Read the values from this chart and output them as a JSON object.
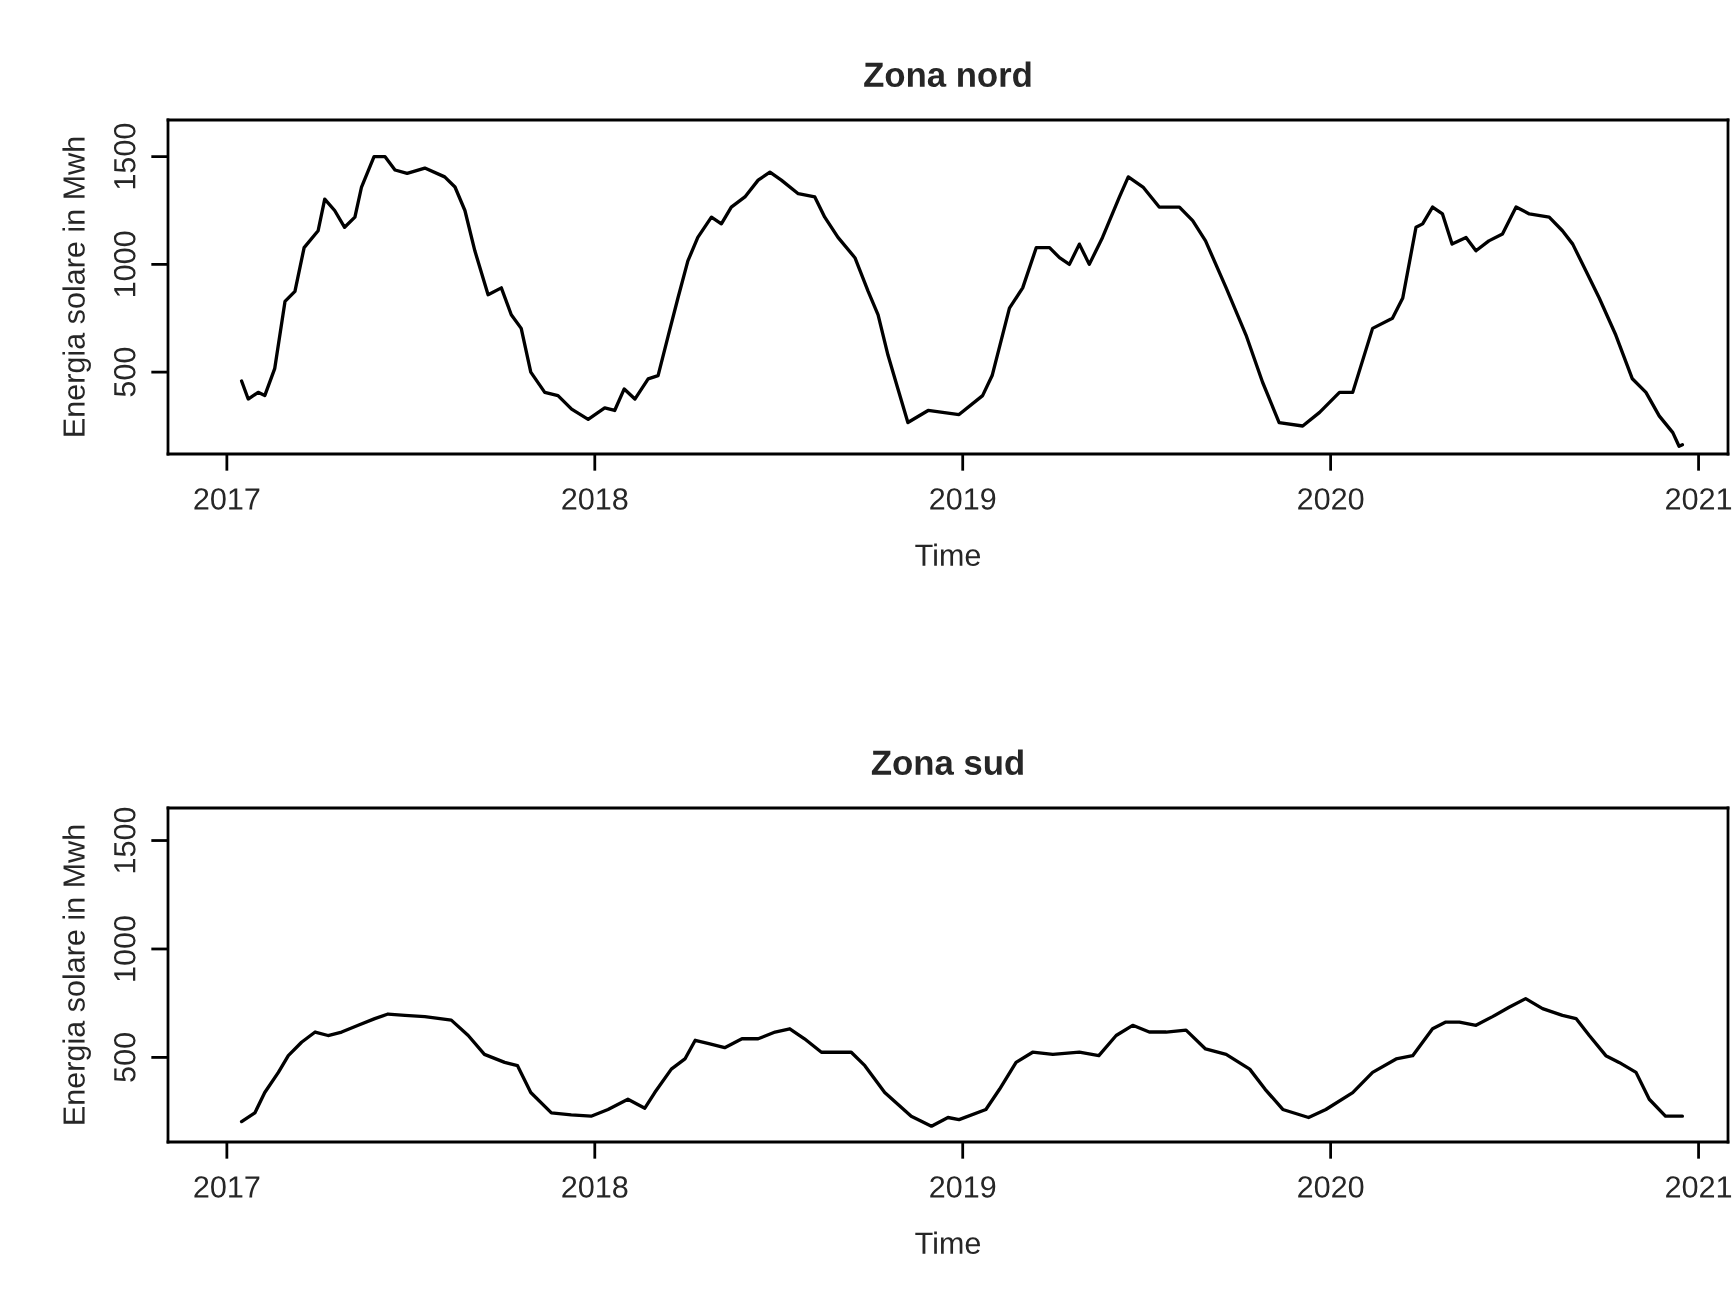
{
  "chart_data": [
    {
      "type": "line",
      "title": "Zona nord",
      "xlabel": "Time",
      "ylabel": "Energia solare in Mwh",
      "xlim": [
        2016.84,
        2021.08
      ],
      "xticks": [
        2017,
        2018,
        2019,
        2020,
        2021
      ],
      "ylim": [
        120,
        1670
      ],
      "yticks": [
        500,
        1000,
        1500
      ],
      "grid": false,
      "legend": false,
      "series": [
        {
          "color": "#000000",
          "x": [
            2017.04,
            2017.058,
            2017.085,
            2017.103,
            2017.13,
            2017.158,
            2017.185,
            2017.21,
            2017.248,
            2017.266,
            2017.293,
            2017.32,
            2017.348,
            2017.366,
            2017.4,
            2017.43,
            2017.457,
            2017.49,
            2017.538,
            2017.592,
            2017.62,
            2017.647,
            2017.674,
            2017.71,
            2017.746,
            2017.773,
            2017.8,
            2017.826,
            2017.864,
            2017.9,
            2017.937,
            2017.982,
            2018.027,
            2018.054,
            2018.08,
            2018.109,
            2018.145,
            2018.172,
            2018.2,
            2018.226,
            2018.253,
            2018.28,
            2018.317,
            2018.344,
            2018.371,
            2018.408,
            2018.444,
            2018.476,
            2018.507,
            2018.553,
            2018.598,
            2018.625,
            2018.661,
            2018.707,
            2018.743,
            2018.77,
            2018.797,
            2018.824,
            2018.851,
            2018.906,
            2018.99,
            2019.054,
            2019.08,
            2019.127,
            2019.163,
            2019.2,
            2019.236,
            2019.263,
            2019.29,
            2019.317,
            2019.344,
            2019.38,
            2019.426,
            2019.45,
            2019.49,
            2019.534,
            2019.589,
            2019.625,
            2019.66,
            2019.716,
            2019.77,
            2019.815,
            2019.86,
            2019.924,
            2019.97,
            2020.024,
            2020.06,
            2020.114,
            2020.168,
            2020.196,
            2020.232,
            2020.25,
            2020.277,
            2020.304,
            2020.33,
            2020.368,
            2020.395,
            2020.43,
            2020.467,
            2020.504,
            2020.54,
            2020.594,
            2020.63,
            2020.658,
            2020.694,
            2020.73,
            2020.775,
            2020.82,
            2020.857,
            2020.893,
            2020.93,
            2020.947,
            2020.956
          ],
          "values": [
            459,
            375,
            406,
            391,
            516,
            828,
            875,
            1078,
            1156,
            1303,
            1250,
            1172,
            1219,
            1359,
            1500,
            1500,
            1438,
            1422,
            1447,
            1406,
            1359,
            1250,
            1063,
            859,
            891,
            766,
            703,
            500,
            406,
            391,
            328,
            281,
            334,
            322,
            422,
            375,
            469,
            484,
            672,
            844,
            1016,
            1125,
            1219,
            1188,
            1266,
            1313,
            1391,
            1428,
            1391,
            1328,
            1313,
            1219,
            1125,
            1031,
            875,
            766,
            578,
            422,
            266,
            322,
            303,
            391,
            484,
            797,
            891,
            1078,
            1078,
            1031,
            1000,
            1094,
            1000,
            1125,
            1313,
            1406,
            1359,
            1266,
            1266,
            1203,
            1109,
            891,
            672,
            453,
            266,
            250,
            313,
            406,
            406,
            703,
            750,
            844,
            1172,
            1188,
            1266,
            1234,
            1094,
            1125,
            1063,
            1109,
            1141,
            1266,
            1234,
            1219,
            1156,
            1094,
            969,
            844,
            672,
            469,
            406,
            297,
            219,
            156,
            163
          ]
        }
      ]
    },
    {
      "type": "line",
      "title": "Zona sud",
      "xlabel": "Time",
      "ylabel": "Energia solare in Mwh",
      "xlim": [
        2016.84,
        2021.08
      ],
      "xticks": [
        2017,
        2018,
        2019,
        2020,
        2021
      ],
      "ylim": [
        110,
        1650
      ],
      "yticks": [
        500,
        1000,
        1500
      ],
      "grid": false,
      "legend": false,
      "series": [
        {
          "color": "#000000",
          "x": [
            2017.04,
            2017.076,
            2017.103,
            2017.14,
            2017.167,
            2017.203,
            2017.24,
            2017.275,
            2017.312,
            2017.357,
            2017.402,
            2017.438,
            2017.484,
            2017.538,
            2017.61,
            2017.656,
            2017.7,
            2017.755,
            2017.79,
            2017.826,
            2017.882,
            2017.936,
            2017.99,
            2018.036,
            2018.09,
            2018.136,
            2018.163,
            2018.208,
            2018.245,
            2018.273,
            2018.31,
            2018.353,
            2018.4,
            2018.444,
            2018.49,
            2018.53,
            2018.57,
            2018.616,
            2018.697,
            2018.734,
            2018.788,
            2018.86,
            2018.915,
            2018.96,
            2018.99,
            2019.063,
            2019.1,
            2019.145,
            2019.19,
            2019.245,
            2019.317,
            2019.37,
            2019.417,
            2019.462,
            2019.507,
            2019.553,
            2019.607,
            2019.66,
            2019.716,
            2019.78,
            2019.822,
            2019.87,
            2019.94,
            2019.987,
            2020.06,
            2020.114,
            2020.178,
            2020.223,
            2020.277,
            2020.313,
            2020.35,
            2020.395,
            2020.44,
            2020.485,
            2020.53,
            2020.576,
            2020.63,
            2020.667,
            2020.703,
            2020.748,
            2020.784,
            2020.83,
            2020.866,
            2020.91,
            2020.956
          ],
          "values": [
            204,
            244,
            338,
            431,
            508,
            570,
            617,
            601,
            617,
            648,
            679,
            700,
            694,
            688,
            672,
            601,
            514,
            477,
            462,
            338,
            244,
            235,
            229,
            260,
            307,
            266,
            338,
            446,
            493,
            579,
            564,
            545,
            586,
            586,
            617,
            632,
            586,
            524,
            524,
            462,
            338,
            229,
            183,
            223,
            213,
            260,
            353,
            477,
            524,
            514,
            524,
            508,
            601,
            648,
            617,
            617,
            626,
            539,
            514,
            446,
            353,
            260,
            223,
            260,
            338,
            431,
            493,
            508,
            632,
            663,
            663,
            648,
            688,
            731,
            771,
            725,
            694,
            679,
            601,
            508,
            477,
            431,
            307,
            229,
            229
          ]
        }
      ]
    }
  ]
}
